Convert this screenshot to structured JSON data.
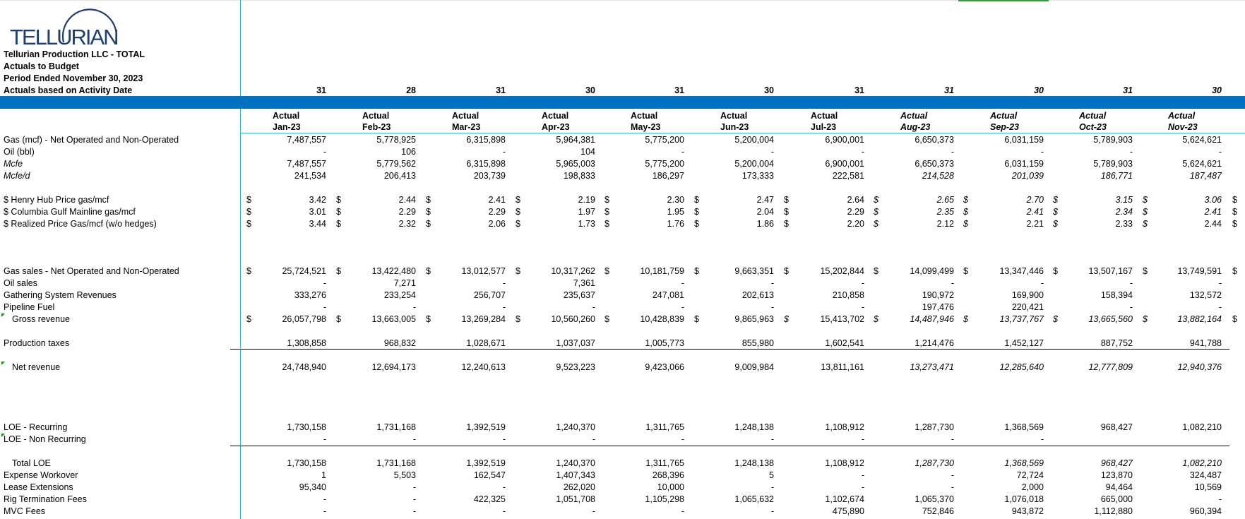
{
  "logo": {
    "text": "TELLURIAN",
    "icon": "tellurian-arc-logo"
  },
  "header": {
    "company": "Tellurian Production LLC - TOTAL",
    "report": "Actuals to Budget",
    "period": "Period Ended November 30, 2023",
    "basis": "Actuals based on Activity Date"
  },
  "days": [
    "31",
    "28",
    "31",
    "30",
    "31",
    "30",
    "31",
    "31",
    "30",
    "31",
    "30"
  ],
  "columns": [
    {
      "type": "Actual",
      "month": "Jan-23"
    },
    {
      "type": "Actual",
      "month": "Feb-23"
    },
    {
      "type": "Actual",
      "month": "Mar-23"
    },
    {
      "type": "Actual",
      "month": "Apr-23"
    },
    {
      "type": "Actual",
      "month": "May-23"
    },
    {
      "type": "Actual",
      "month": "Jun-23"
    },
    {
      "type": "Actual",
      "month": "Jul-23"
    },
    {
      "type": "Actual",
      "month": "Aug-23"
    },
    {
      "type": "Actual",
      "month": "Sep-23"
    },
    {
      "type": "Actual",
      "month": "Oct-23"
    },
    {
      "type": "Actual",
      "month": "Nov-23"
    }
  ],
  "rows": {
    "gas_mcf": {
      "label": "Gas (mcf) - Net Operated and Non-Operated",
      "values": [
        "7,487,557",
        "5,778,925",
        "6,315,898",
        "5,964,381",
        "5,775,200",
        "5,200,004",
        "6,900,001",
        "6,650,373",
        "6,031,159",
        "5,789,903",
        "5,624,621"
      ]
    },
    "oil_bbl": {
      "label": "Oil (bbl)",
      "values": [
        "-",
        "106",
        "-",
        "104",
        "-",
        "-",
        "-",
        "-",
        "-",
        "-",
        "-"
      ]
    },
    "mcfe": {
      "label": "Mcfe",
      "values": [
        "7,487,557",
        "5,779,562",
        "6,315,898",
        "5,965,003",
        "5,775,200",
        "5,200,004",
        "6,900,001",
        "6,650,373",
        "6,031,159",
        "5,789,903",
        "5,624,621"
      ]
    },
    "mcfe_d": {
      "label": "Mcfe/d",
      "values": [
        "241,534",
        "206,413",
        "203,739",
        "198,833",
        "186,297",
        "173,333",
        "222,581",
        "214,528",
        "201,039",
        "186,771",
        "187,487"
      ]
    },
    "henry_hub": {
      "label": "$ Henry Hub Price gas/mcf",
      "values": [
        "3.42",
        "2.44",
        "2.41",
        "2.19",
        "2.30",
        "2.47",
        "2.64",
        "2.65",
        "2.70",
        "3.15",
        "3.06"
      ]
    },
    "columbia": {
      "label": "$ Columbia Gulf Mainline gas/mcf",
      "values": [
        "3.01",
        "2.29",
        "2.29",
        "1.97",
        "1.95",
        "2.04",
        "2.29",
        "2.35",
        "2.41",
        "2.34",
        "2.41"
      ]
    },
    "realized": {
      "label": "$ Realized Price Gas/mcf (w/o hedges)",
      "values": [
        "3.44",
        "2.32",
        "2.06",
        "1.73",
        "1.76",
        "1.86",
        "2.20",
        "2.12",
        "2.21",
        "2.33",
        "2.44"
      ]
    },
    "gas_sales": {
      "label": "Gas sales - Net Operated and Non-Operated",
      "values": [
        "25,724,521",
        "13,422,480",
        "13,012,577",
        "10,317,262",
        "10,181,759",
        "9,663,351",
        "15,202,844",
        "14,099,499",
        "13,347,446",
        "13,507,167",
        "13,749,591"
      ]
    },
    "oil_sales": {
      "label": "Oil sales",
      "values": [
        "-",
        "7,271",
        "-",
        "7,361",
        "-",
        "-",
        "-",
        "-",
        "-",
        "-",
        "-"
      ]
    },
    "gathering": {
      "label": "Gathering System Revenues",
      "values": [
        "333,276",
        "233,254",
        "256,707",
        "235,637",
        "247,081",
        "202,613",
        "210,858",
        "190,972",
        "169,900",
        "158,394",
        "132,572"
      ]
    },
    "pipeline": {
      "label": "Pipeline Fuel",
      "values": [
        "-",
        "-",
        "-",
        "-",
        "-",
        "-",
        "-",
        "197,476",
        "220,421",
        "-",
        "-"
      ]
    },
    "gross": {
      "label": "Gross revenue",
      "values": [
        "26,057,798",
        "13,663,005",
        "13,269,284",
        "10,560,260",
        "10,428,839",
        "9,865,963",
        "15,413,702",
        "14,487,946",
        "13,737,767",
        "13,665,560",
        "13,882,164"
      ]
    },
    "prod_tax": {
      "label": "Production taxes",
      "values": [
        "1,308,858",
        "968,832",
        "1,028,671",
        "1,037,037",
        "1,005,773",
        "855,980",
        "1,602,541",
        "1,214,476",
        "1,452,127",
        "887,752",
        "941,788"
      ]
    },
    "net_rev": {
      "label": "Net revenue",
      "values": [
        "24,748,940",
        "12,694,173",
        "12,240,613",
        "9,523,223",
        "9,423,066",
        "9,009,984",
        "13,811,161",
        "13,273,471",
        "12,285,640",
        "12,777,809",
        "12,940,376"
      ]
    },
    "loe_rec": {
      "label": "LOE - Recurring",
      "values": [
        "1,730,158",
        "1,731,168",
        "1,392,519",
        "1,240,370",
        "1,311,765",
        "1,248,138",
        "1,108,912",
        "1,287,730",
        "1,368,569",
        "968,427",
        "1,082,210"
      ]
    },
    "loe_nonrec": {
      "label": "LOE - Non Recurring",
      "values": [
        "-",
        "-",
        "-",
        "-",
        "-",
        "-",
        "-",
        "-",
        "-",
        "",
        ""
      ]
    },
    "total_loe": {
      "label": "Total LOE",
      "values": [
        "1,730,158",
        "1,731,168",
        "1,392,519",
        "1,240,370",
        "1,311,765",
        "1,248,138",
        "1,108,912",
        "1,287,730",
        "1,368,569",
        "968,427",
        "1,082,210"
      ]
    },
    "workover": {
      "label": "Expense Workover",
      "values": [
        "1",
        "5,503",
        "162,547",
        "1,407,343",
        "268,396",
        "5",
        "-",
        "-",
        "72,724",
        "123,870",
        "324,487"
      ]
    },
    "lease_ext": {
      "label": "Lease Extensions",
      "values": [
        "95,340",
        "-",
        "-",
        "262,020",
        "10,000",
        "-",
        "-",
        "-",
        "2,000",
        "94,464",
        "10,569"
      ]
    },
    "rig_term": {
      "label": "Rig Termination Fees",
      "values": [
        "-",
        "-",
        "422,325",
        "1,051,708",
        "1,105,298",
        "1,065,632",
        "1,102,674",
        "1,065,370",
        "1,076,018",
        "665,000",
        "-"
      ]
    },
    "mvc": {
      "label": "MVC Fees",
      "values": [
        "-",
        "-",
        "-",
        "-",
        "-",
        "-",
        "475,890",
        "752,846",
        "943,872",
        "1,112,880",
        "960,394"
      ]
    }
  },
  "currency_symbol": "$"
}
